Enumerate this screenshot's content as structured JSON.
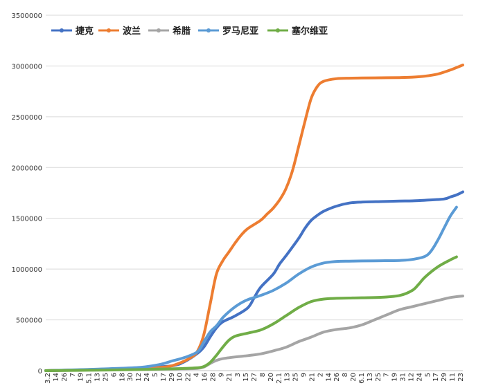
{
  "chart_data": {
    "type": "line",
    "title": "",
    "xlabel": "",
    "ylabel": "",
    "ylim": [
      0,
      3500000
    ],
    "yticks": [
      0,
      500000,
      1000000,
      1500000,
      2000000,
      2500000,
      3000000,
      3500000
    ],
    "ytick_labels": [
      "0",
      "500000",
      "1000000",
      "1500000",
      "2000000",
      "2500000",
      "3000000",
      "3500000"
    ],
    "x_tick_labels": [
      "3.2",
      "14",
      "26",
      "7",
      "19",
      "5.1",
      "13",
      "25",
      "6",
      "18",
      "30",
      "12",
      "24",
      "5",
      "17",
      "29",
      "10",
      "22",
      "4",
      "16",
      "28",
      "9",
      "21",
      "3",
      "15",
      "27",
      "8",
      "20",
      "2.1",
      "13",
      "25",
      "9",
      "21",
      "2",
      "14",
      "26",
      "8",
      "20",
      "6.1",
      "13",
      "25",
      "7",
      "19",
      "31",
      "12",
      "24",
      "5",
      "17",
      "29",
      "11",
      "23"
    ],
    "grid": "horizontal",
    "legend_position": "top-left",
    "series": [
      {
        "name": "捷克",
        "color": "#4472c4",
        "points": [
          [
            0,
            0
          ],
          [
            5,
            7000
          ],
          [
            10,
            17000
          ],
          [
            15,
            28000
          ],
          [
            20,
            48000
          ],
          [
            22,
            90000
          ],
          [
            24,
            170000
          ],
          [
            25,
            230000
          ],
          [
            26,
            330000
          ],
          [
            27,
            420000
          ],
          [
            28,
            480000
          ],
          [
            30,
            540000
          ],
          [
            32,
            620000
          ],
          [
            33,
            720000
          ],
          [
            34,
            820000
          ],
          [
            36,
            950000
          ],
          [
            37,
            1050000
          ],
          [
            38,
            1130000
          ],
          [
            40,
            1300000
          ],
          [
            41,
            1400000
          ],
          [
            42,
            1480000
          ],
          [
            43,
            1530000
          ],
          [
            44,
            1570000
          ],
          [
            46,
            1620000
          ],
          [
            48,
            1650000
          ],
          [
            50,
            1660000
          ],
          [
            53,
            1665000
          ],
          [
            56,
            1670000
          ],
          [
            58,
            1672000
          ],
          [
            60,
            1678000
          ],
          [
            63,
            1690000
          ],
          [
            64,
            1710000
          ],
          [
            65,
            1730000
          ],
          [
            66,
            1760000
          ]
        ]
      },
      {
        "name": "波兰",
        "color": "#ed7d31",
        "points": [
          [
            0,
            0
          ],
          [
            5,
            7000
          ],
          [
            10,
            13000
          ],
          [
            15,
            22000
          ],
          [
            19,
            37000
          ],
          [
            21,
            70000
          ],
          [
            23,
            130000
          ],
          [
            24,
            190000
          ],
          [
            25,
            350000
          ],
          [
            26,
            650000
          ],
          [
            27,
            950000
          ],
          [
            28,
            1080000
          ],
          [
            29,
            1170000
          ],
          [
            30,
            1260000
          ],
          [
            31,
            1340000
          ],
          [
            32,
            1400000
          ],
          [
            34,
            1480000
          ],
          [
            35,
            1540000
          ],
          [
            36,
            1600000
          ],
          [
            37,
            1680000
          ],
          [
            38,
            1790000
          ],
          [
            39,
            1960000
          ],
          [
            40,
            2200000
          ],
          [
            41,
            2450000
          ],
          [
            42,
            2680000
          ],
          [
            43,
            2800000
          ],
          [
            44,
            2850000
          ],
          [
            46,
            2875000
          ],
          [
            48,
            2880000
          ],
          [
            50,
            2882000
          ],
          [
            53,
            2884000
          ],
          [
            56,
            2886000
          ],
          [
            58,
            2890000
          ],
          [
            60,
            2900000
          ],
          [
            62,
            2920000
          ],
          [
            64,
            2960000
          ],
          [
            66,
            3010000
          ]
        ]
      },
      {
        "name": "希腊",
        "color": "#a5a5a5",
        "points": [
          [
            0,
            0
          ],
          [
            5,
            4000
          ],
          [
            10,
            9000
          ],
          [
            15,
            14000
          ],
          [
            20,
            18000
          ],
          [
            22,
            19000
          ],
          [
            24,
            22000
          ],
          [
            25,
            35000
          ],
          [
            26,
            70000
          ],
          [
            27,
            100000
          ],
          [
            28,
            118000
          ],
          [
            30,
            135000
          ],
          [
            32,
            148000
          ],
          [
            34,
            165000
          ],
          [
            36,
            195000
          ],
          [
            38,
            230000
          ],
          [
            40,
            285000
          ],
          [
            42,
            330000
          ],
          [
            44,
            380000
          ],
          [
            46,
            405000
          ],
          [
            48,
            420000
          ],
          [
            50,
            450000
          ],
          [
            52,
            500000
          ],
          [
            54,
            550000
          ],
          [
            56,
            600000
          ],
          [
            58,
            630000
          ],
          [
            60,
            660000
          ],
          [
            62,
            690000
          ],
          [
            64,
            720000
          ],
          [
            66,
            735000
          ]
        ]
      },
      {
        "name": "罗马尼亚",
        "color": "#5b9bd5",
        "points": [
          [
            0,
            0
          ],
          [
            5,
            8000
          ],
          [
            10,
            19000
          ],
          [
            15,
            33000
          ],
          [
            18,
            60000
          ],
          [
            20,
            95000
          ],
          [
            22,
            130000
          ],
          [
            24,
            185000
          ],
          [
            25,
            280000
          ],
          [
            26,
            380000
          ],
          [
            27,
            440000
          ],
          [
            28,
            520000
          ],
          [
            29,
            580000
          ],
          [
            30,
            630000
          ],
          [
            31,
            670000
          ],
          [
            32,
            700000
          ],
          [
            34,
            740000
          ],
          [
            36,
            790000
          ],
          [
            38,
            860000
          ],
          [
            40,
            950000
          ],
          [
            42,
            1020000
          ],
          [
            44,
            1060000
          ],
          [
            46,
            1075000
          ],
          [
            48,
            1078000
          ],
          [
            50,
            1080000
          ],
          [
            53,
            1082000
          ],
          [
            56,
            1085000
          ],
          [
            58,
            1095000
          ],
          [
            60,
            1125000
          ],
          [
            61,
            1180000
          ],
          [
            62,
            1280000
          ],
          [
            63,
            1400000
          ],
          [
            64,
            1520000
          ],
          [
            65,
            1610000
          ]
        ]
      },
      {
        "name": "塞尔维亚",
        "color": "#70ad47",
        "points": [
          [
            0,
            0
          ],
          [
            5,
            3000
          ],
          [
            10,
            6000
          ],
          [
            15,
            11000
          ],
          [
            20,
            18000
          ],
          [
            22,
            22000
          ],
          [
            24,
            28000
          ],
          [
            25,
            40000
          ],
          [
            26,
            80000
          ],
          [
            27,
            150000
          ],
          [
            28,
            230000
          ],
          [
            29,
            300000
          ],
          [
            30,
            340000
          ],
          [
            32,
            370000
          ],
          [
            34,
            400000
          ],
          [
            36,
            460000
          ],
          [
            38,
            540000
          ],
          [
            40,
            620000
          ],
          [
            42,
            680000
          ],
          [
            44,
            705000
          ],
          [
            46,
            712000
          ],
          [
            48,
            715000
          ],
          [
            50,
            718000
          ],
          [
            53,
            722000
          ],
          [
            56,
            740000
          ],
          [
            58,
            790000
          ],
          [
            59,
            850000
          ],
          [
            60,
            920000
          ],
          [
            62,
            1020000
          ],
          [
            64,
            1090000
          ],
          [
            65,
            1120000
          ]
        ]
      }
    ]
  }
}
